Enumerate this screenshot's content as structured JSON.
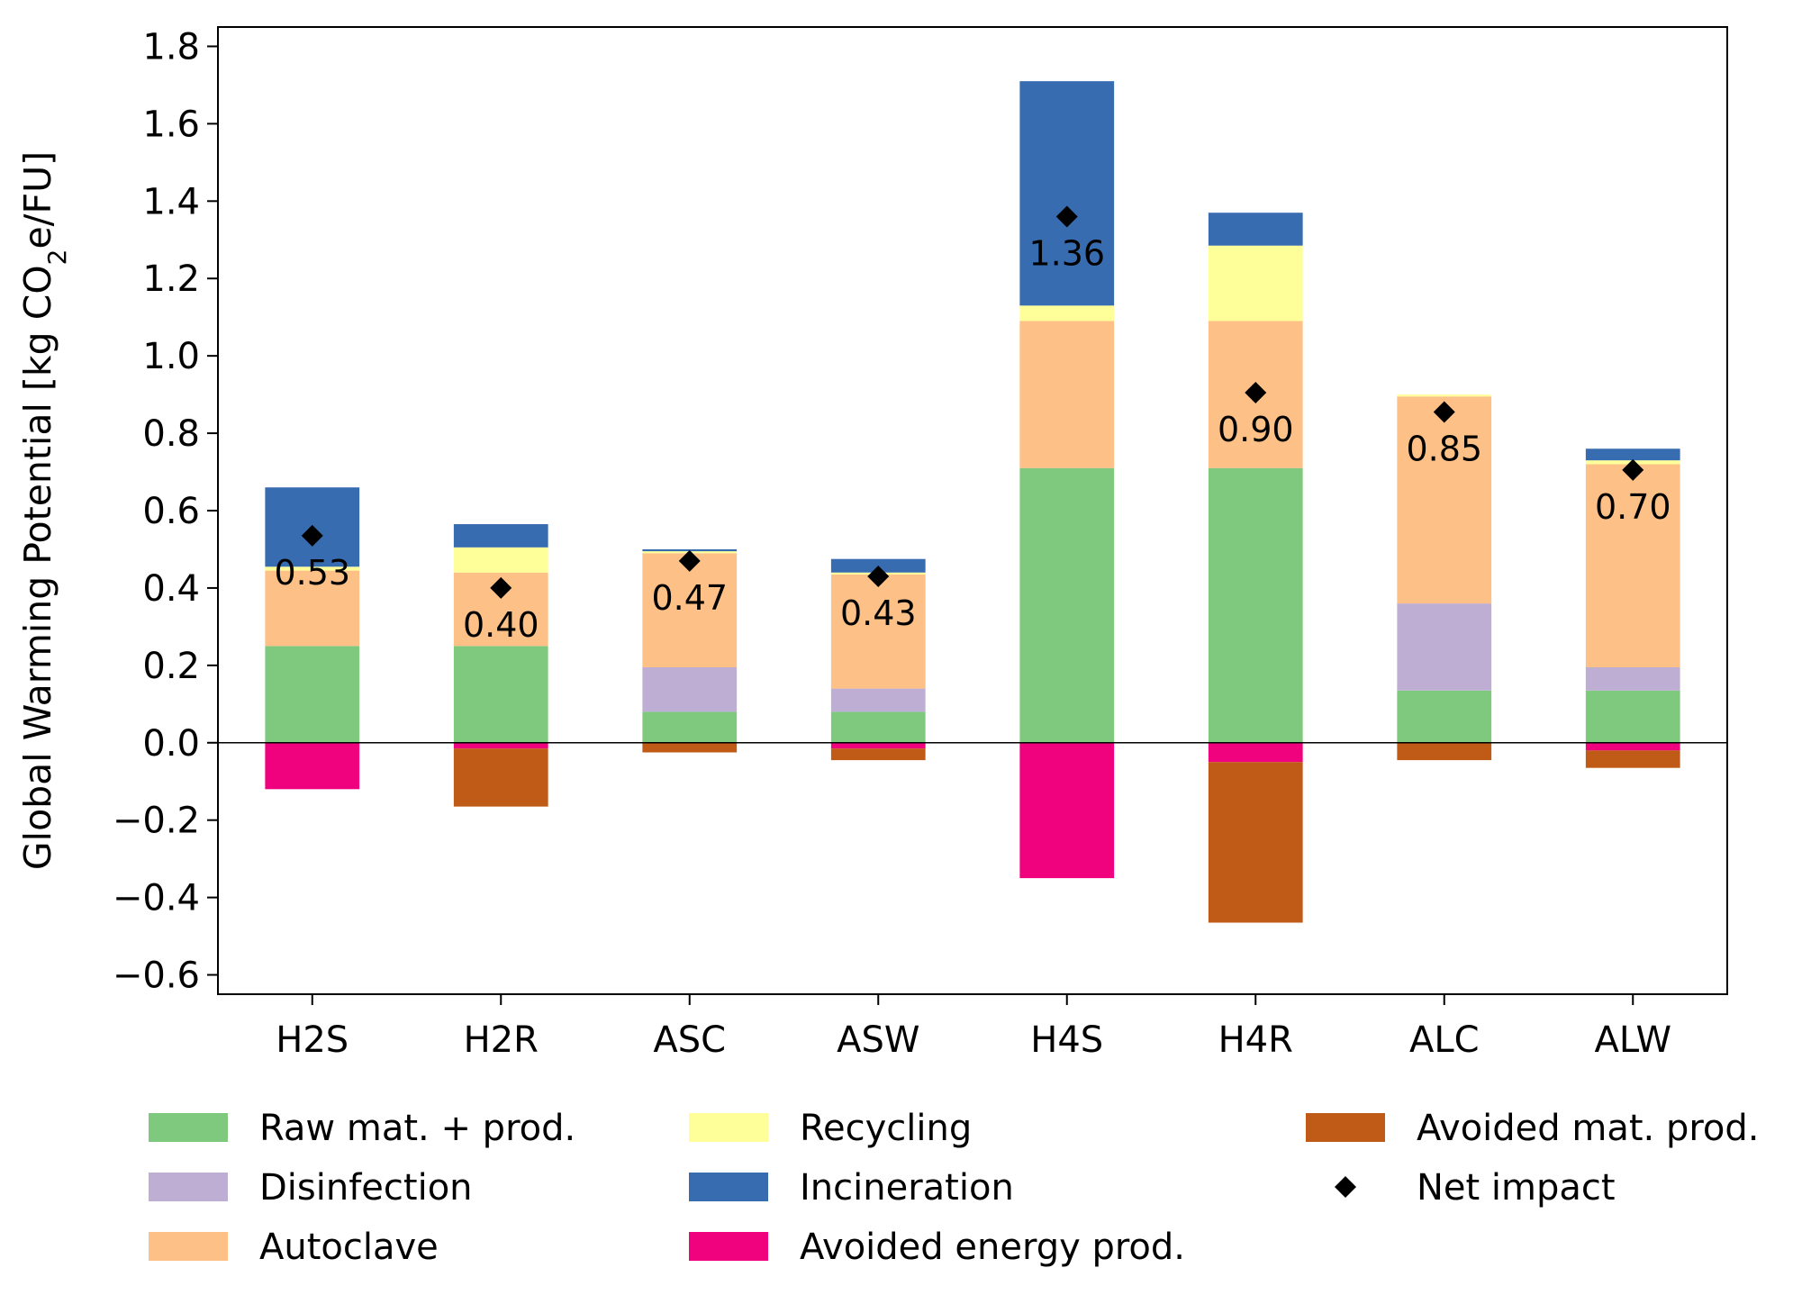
{
  "chart_data": {
    "type": "bar",
    "stacked": true,
    "title": "",
    "xlabel": "",
    "ylabel_parts": [
      "Global Warming Potential [kg CO",
      "2",
      "e/FU]"
    ],
    "ylim": [
      -0.65,
      1.85
    ],
    "yticks": [
      -0.6,
      -0.4,
      -0.2,
      0.0,
      0.2,
      0.4,
      0.6,
      0.8,
      1.0,
      1.2,
      1.4,
      1.6,
      1.8
    ],
    "ytick_labels": [
      "−0.6",
      "−0.4",
      "−0.2",
      "0.0",
      "0.2",
      "0.4",
      "0.6",
      "0.8",
      "1.0",
      "1.2",
      "1.4",
      "1.6",
      "1.8"
    ],
    "categories": [
      "H2S",
      "H2R",
      "ASC",
      "ASW",
      "H4S",
      "H4R",
      "ALC",
      "ALW"
    ],
    "series": [
      {
        "name": "Raw mat. + prod.",
        "color": "#7fc97f",
        "values": [
          0.25,
          0.25,
          0.08,
          0.08,
          0.71,
          0.71,
          0.135,
          0.135
        ]
      },
      {
        "name": "Disinfection",
        "color": "#beaed4",
        "values": [
          0.0,
          0.0,
          0.115,
          0.06,
          0.0,
          0.0,
          0.225,
          0.06
        ]
      },
      {
        "name": "Autoclave",
        "color": "#fdc086",
        "values": [
          0.195,
          0.19,
          0.295,
          0.295,
          0.38,
          0.38,
          0.535,
          0.525
        ]
      },
      {
        "name": "Recycling",
        "color": "#ffff99",
        "values": [
          0.01,
          0.065,
          0.005,
          0.005,
          0.04,
          0.195,
          0.005,
          0.01
        ]
      },
      {
        "name": "Incineration",
        "color": "#386cb0",
        "values": [
          0.205,
          0.06,
          0.005,
          0.035,
          0.58,
          0.085,
          0.0,
          0.03
        ]
      },
      {
        "name": "Avoided energy prod.",
        "color": "#f0027f",
        "values": [
          -0.12,
          -0.015,
          0.0,
          -0.015,
          -0.35,
          -0.05,
          0.0,
          -0.02
        ]
      },
      {
        "name": "Avoided mat. prod.",
        "color": "#bf5b17",
        "values": [
          0.0,
          -0.15,
          -0.025,
          -0.03,
          0.0,
          -0.415,
          -0.045,
          -0.045
        ]
      }
    ],
    "net_impact": {
      "name": "Net impact",
      "values": [
        0.535,
        0.4,
        0.47,
        0.43,
        1.36,
        0.905,
        0.855,
        0.705
      ],
      "labels": [
        "0.53",
        "0.40",
        "0.47",
        "0.43",
        "1.36",
        "0.90",
        "0.85",
        "0.70"
      ]
    },
    "legend": {
      "placement": "bottom",
      "columns": 3
    },
    "grid": false,
    "zero_line": true
  }
}
